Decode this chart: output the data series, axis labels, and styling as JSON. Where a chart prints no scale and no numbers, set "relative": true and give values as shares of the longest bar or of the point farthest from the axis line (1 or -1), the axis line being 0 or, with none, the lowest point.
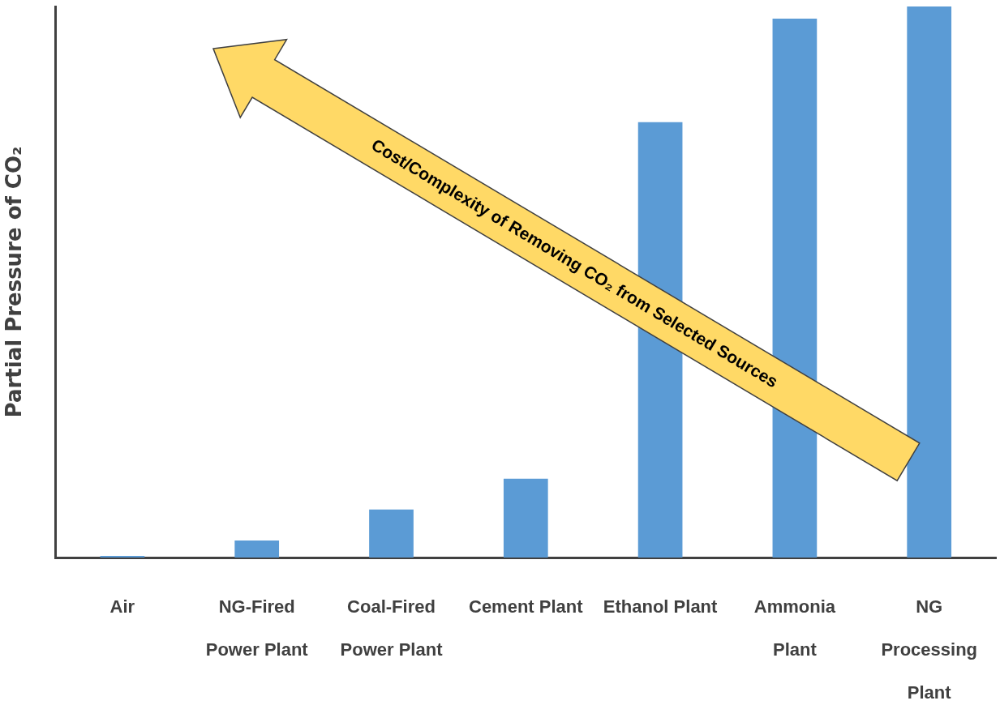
{
  "chart_data": {
    "type": "bar",
    "ylabel": "Partial Pressure of CO₂",
    "relative": true,
    "categories": [
      "Air",
      "NG-Fired\nPower Plant",
      "Coal-Fired\nPower Plant",
      "Cement Plant",
      "Ethanol Plant",
      "Ammonia\nPlant",
      "NG\nProcessing\nPlant"
    ],
    "values": [
      0.003,
      0.031,
      0.087,
      0.143,
      0.79,
      0.978,
      1
    ],
    "color": "#5b9bd5",
    "annotations": [
      "Cost/Complexity of Removing CO₂ from Selected Sources"
    ]
  }
}
